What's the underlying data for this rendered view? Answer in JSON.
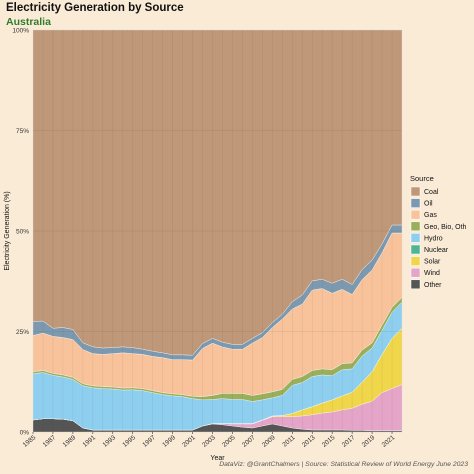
{
  "header": {
    "title": "Electricity Generation by Source",
    "subtitle": "Australia",
    "caption": "DataViz: @GrantChalmers | Source: Statistical Review of World Energy June 2023"
  },
  "chart_data": {
    "type": "area",
    "title": "Electricity Generation by Source",
    "subtitle": "Australia",
    "xlabel": "Year",
    "ylabel": "Electricity Generation (%)",
    "ylim": [
      0,
      100
    ],
    "y_ticks": [
      "0%",
      "25%",
      "50%",
      "75%",
      "100%"
    ],
    "x_ticks": [
      "1985",
      "1987",
      "1989",
      "1991",
      "1993",
      "1995",
      "1997",
      "1999",
      "2001",
      "2003",
      "2005",
      "2007",
      "2009",
      "2011",
      "2013",
      "2015",
      "2017",
      "2019",
      "2021"
    ],
    "legend_title": "Source",
    "legend_position": "right",
    "x": [
      1985,
      1986,
      1987,
      1988,
      1989,
      1990,
      1991,
      1992,
      1993,
      1994,
      1995,
      1996,
      1997,
      1998,
      1999,
      2000,
      2001,
      2002,
      2003,
      2004,
      2005,
      2006,
      2007,
      2008,
      2009,
      2010,
      2011,
      2012,
      2013,
      2014,
      2015,
      2016,
      2017,
      2018,
      2019,
      2020,
      2021,
      2022
    ],
    "series": [
      {
        "name": "Other",
        "color": "#555555",
        "values": [
          3,
          3.3,
          3.3,
          3.2,
          2.8,
          1.0,
          0.5,
          0.5,
          0.5,
          0.5,
          0.5,
          0.5,
          0.5,
          0.5,
          0.5,
          0.5,
          0.5,
          1.5,
          2.0,
          1.8,
          1.5,
          1.2,
          1.0,
          1.5,
          2.0,
          1.5,
          1.0,
          0.7,
          0.5,
          0.5,
          0.5,
          0.5,
          0.4,
          0.4,
          0.3,
          0.3,
          0.3,
          0.3
        ]
      },
      {
        "name": "Wind",
        "color": "#E4A5C8",
        "values": [
          0,
          0,
          0,
          0,
          0,
          0,
          0,
          0,
          0,
          0,
          0,
          0,
          0,
          0,
          0,
          0,
          0,
          0,
          0.1,
          0.3,
          0.5,
          0.8,
          1.0,
          1.4,
          1.8,
          2.3,
          2.8,
          3.3,
          3.8,
          4.2,
          4.5,
          5.0,
          5.5,
          6.5,
          7.5,
          9.5,
          10.5,
          11.5
        ]
      },
      {
        "name": "Solar",
        "color": "#F0D64A",
        "values": [
          0,
          0,
          0,
          0,
          0,
          0,
          0,
          0,
          0,
          0,
          0,
          0,
          0,
          0,
          0,
          0,
          0,
          0,
          0,
          0,
          0.1,
          0.1,
          0.1,
          0.1,
          0.2,
          0.3,
          0.8,
          1.5,
          2.0,
          2.5,
          3.0,
          3.5,
          4.0,
          5.5,
          7.5,
          9.5,
          12.5,
          14.0
        ]
      },
      {
        "name": "Nuclear",
        "color": "#4FB594",
        "values": [
          0,
          0,
          0,
          0,
          0,
          0,
          0,
          0,
          0,
          0,
          0,
          0,
          0,
          0,
          0,
          0,
          0,
          0,
          0,
          0,
          0,
          0,
          0,
          0,
          0,
          0,
          0,
          0,
          0,
          0,
          0,
          0,
          0,
          0,
          0,
          0,
          0,
          0
        ]
      },
      {
        "name": "Hydro",
        "color": "#8ECFF0",
        "values": [
          11.5,
          11.5,
          10.8,
          10.5,
          10.3,
          10.5,
          10.5,
          10.3,
          10.2,
          10.0,
          10.0,
          9.8,
          9.3,
          8.8,
          8.5,
          8.3,
          7.8,
          6.5,
          6.0,
          6.2,
          6.0,
          6.0,
          5.5,
          5.0,
          4.5,
          5.0,
          7.0,
          6.8,
          7.5,
          7.0,
          6.0,
          6.5,
          5.8,
          6.5,
          6.0,
          6.0,
          6.5,
          6.5
        ]
      },
      {
        "name": "Geo, Bio, Oth",
        "color": "#9AAF5C",
        "values": [
          0.5,
          0.5,
          0.5,
          0.5,
          0.5,
          0.5,
          0.5,
          0.5,
          0.5,
          0.5,
          0.5,
          0.5,
          0.5,
          0.5,
          0.5,
          0.5,
          0.6,
          0.8,
          1.0,
          1.3,
          1.5,
          1.5,
          1.5,
          1.5,
          1.5,
          1.5,
          1.5,
          1.5,
          1.5,
          1.5,
          1.5,
          1.5,
          1.5,
          1.5,
          1.3,
          1.3,
          1.2,
          1.2
        ]
      },
      {
        "name": "Gas",
        "color": "#F8C39B",
        "values": [
          9,
          9.3,
          9.2,
          9.3,
          9.4,
          8.5,
          8.0,
          8.0,
          8.3,
          8.8,
          8.5,
          8.5,
          8.5,
          8.7,
          8.5,
          8.7,
          9.0,
          12.0,
          13.0,
          11.5,
          11.0,
          11.0,
          13.0,
          14.0,
          16.0,
          17.5,
          17.5,
          18.0,
          20.0,
          20.0,
          19.0,
          18.5,
          17.0,
          17.5,
          18.5,
          18.0,
          18.5,
          16.0
        ]
      },
      {
        "name": "Oil",
        "color": "#7C99B0",
        "values": [
          3.5,
          3.0,
          2.0,
          2.5,
          2.5,
          1.7,
          1.7,
          1.6,
          1.5,
          1.5,
          1.5,
          1.3,
          1.3,
          1.2,
          1.2,
          1.2,
          1.2,
          1.2,
          1.2,
          1.2,
          1.2,
          1.2,
          1.2,
          1.2,
          1.2,
          1.2,
          1.8,
          2.3,
          2.3,
          2.3,
          2.5,
          2.5,
          2.5,
          2.5,
          2.5,
          2.2,
          2.0,
          2.0
        ]
      },
      {
        "name": "Coal",
        "color": "#BE9878",
        "values": [
          72.5,
          72.4,
          74.2,
          74.0,
          74.5,
          77.8,
          78.8,
          79.1,
          79.0,
          79.2,
          79.0,
          79.4,
          79.9,
          80.3,
          80.8,
          80.8,
          80.9,
          78.0,
          76.7,
          77.5,
          78.2,
          78.2,
          76.7,
          75.3,
          72.8,
          70.7,
          67.6,
          65.9,
          62.4,
          62.0,
          63.0,
          62.0,
          63.3,
          59.6,
          58.4,
          53.2,
          48.5,
          48.5
        ]
      }
    ],
    "legend_entries": [
      "Coal",
      "Oil",
      "Gas",
      "Geo, Bio, Oth",
      "Hydro",
      "Nuclear",
      "Solar",
      "Wind",
      "Other"
    ],
    "grid": true
  }
}
